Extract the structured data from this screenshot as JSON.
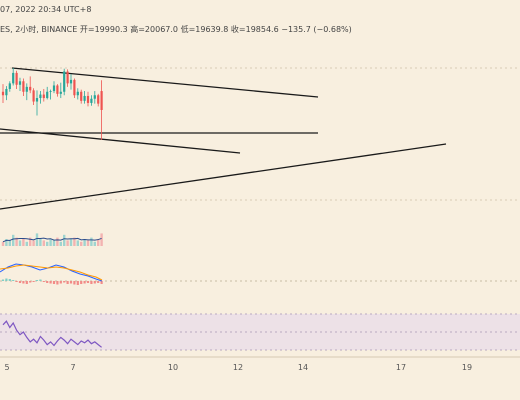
{
  "header": {
    "date_text": "07, 2022 20:34 UTC+8",
    "symbol_text": "ES, 2小时, BINANCE",
    "open_label": "开",
    "open_value": "=19990.3",
    "high_label": "高",
    "high_value": "=20067.0",
    "low_label": "低",
    "low_value": "=19639.8",
    "close_label": "收",
    "close_value": "=19854.6",
    "change_text": "−135.7 (−0.68%)"
  },
  "colors": {
    "background": "#f8efdf",
    "up": "#26a69a",
    "down": "#ef5350",
    "trendline": "#1a1a1a",
    "macd_line": "#2962ff",
    "signal_line": "#ff9800",
    "rsi_line": "#7e57c2",
    "rsi_band": "#e8dcea"
  },
  "chart_data": {
    "type": "candlestick",
    "x_ticks": [
      "5",
      "7",
      "10",
      "12",
      "14",
      "17",
      "19"
    ],
    "candles": [
      {
        "o": 19985,
        "h": 20040,
        "l": 19905,
        "c": 19960
      },
      {
        "o": 19960,
        "h": 20025,
        "l": 19925,
        "c": 20005
      },
      {
        "o": 20005,
        "h": 20060,
        "l": 19985,
        "c": 20045
      },
      {
        "o": 20045,
        "h": 20155,
        "l": 20030,
        "c": 20120
      },
      {
        "o": 20120,
        "h": 20135,
        "l": 20005,
        "c": 20035
      },
      {
        "o": 20035,
        "h": 20085,
        "l": 19990,
        "c": 20060
      },
      {
        "o": 20060,
        "h": 20080,
        "l": 19955,
        "c": 19985
      },
      {
        "o": 19985,
        "h": 20045,
        "l": 19925,
        "c": 20020
      },
      {
        "o": 20020,
        "h": 20095,
        "l": 19975,
        "c": 19995
      },
      {
        "o": 19995,
        "h": 20010,
        "l": 19890,
        "c": 19915
      },
      {
        "o": 19915,
        "h": 19995,
        "l": 19815,
        "c": 19940
      },
      {
        "o": 19940,
        "h": 19990,
        "l": 19900,
        "c": 19965
      },
      {
        "o": 19965,
        "h": 20005,
        "l": 19915,
        "c": 19940
      },
      {
        "o": 19940,
        "h": 20020,
        "l": 19930,
        "c": 19985
      },
      {
        "o": 19985,
        "h": 20000,
        "l": 19930,
        "c": 19990
      },
      {
        "o": 19990,
        "h": 20060,
        "l": 19975,
        "c": 20030
      },
      {
        "o": 20030,
        "h": 20040,
        "l": 19950,
        "c": 19970
      },
      {
        "o": 19970,
        "h": 20050,
        "l": 19940,
        "c": 19985
      },
      {
        "o": 19985,
        "h": 20150,
        "l": 19960,
        "c": 20130
      },
      {
        "o": 20130,
        "h": 20145,
        "l": 20020,
        "c": 20045
      },
      {
        "o": 20045,
        "h": 20110,
        "l": 20000,
        "c": 20070
      },
      {
        "o": 20070,
        "h": 20080,
        "l": 19940,
        "c": 19960
      },
      {
        "o": 19960,
        "h": 20010,
        "l": 19930,
        "c": 19985
      },
      {
        "o": 19985,
        "h": 20000,
        "l": 19900,
        "c": 19920
      },
      {
        "o": 19920,
        "h": 19990,
        "l": 19900,
        "c": 19955
      },
      {
        "o": 19955,
        "h": 19985,
        "l": 19880,
        "c": 19905
      },
      {
        "o": 19905,
        "h": 19960,
        "l": 19885,
        "c": 19935
      },
      {
        "o": 19935,
        "h": 19990,
        "l": 19900,
        "c": 19960
      },
      {
        "o": 19960,
        "h": 19970,
        "l": 19880,
        "c": 19900
      },
      {
        "o": 19990,
        "h": 20067,
        "l": 19639.8,
        "c": 19854.6
      }
    ],
    "volume": [
      3,
      5,
      4,
      8,
      6,
      4,
      5,
      3,
      6,
      4,
      9,
      5,
      4,
      3,
      5,
      4,
      6,
      3,
      8,
      4,
      5,
      6,
      4,
      3,
      5,
      4,
      6,
      3,
      5,
      9
    ],
    "macd_histogram": [
      0.3,
      0.5,
      0.4,
      0.2,
      -0.2,
      -0.4,
      -0.5,
      -0.6,
      -0.3,
      -0.2,
      0.2,
      0.3,
      -0.2,
      -0.4,
      -0.5,
      -0.6,
      -0.7,
      -0.5,
      -0.3,
      -0.6,
      -0.5,
      -0.7,
      -0.8,
      -0.6,
      -0.5,
      -0.4,
      -0.6,
      -0.5,
      -0.4,
      -0.6
    ],
    "rsi": [
      58,
      62,
      55,
      60,
      52,
      47,
      50,
      44,
      39,
      42,
      38,
      45,
      41,
      36,
      39,
      35,
      40,
      44,
      41,
      37,
      42,
      39,
      36,
      40,
      38,
      41,
      37,
      39,
      36,
      33
    ]
  }
}
